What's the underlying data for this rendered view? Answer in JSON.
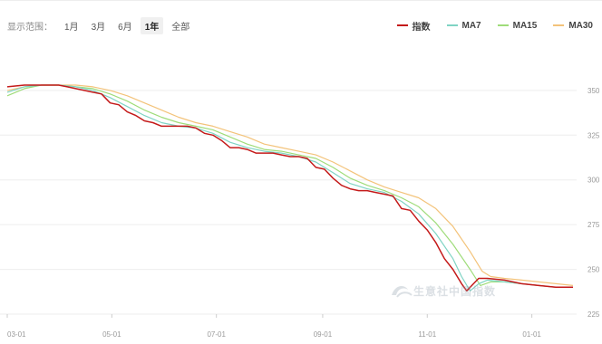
{
  "toolbar": {
    "range_label": "显示范围：",
    "buttons": [
      "1月",
      "3月",
      "6月",
      "1年",
      "全部"
    ],
    "active": "1年"
  },
  "legend": [
    {
      "label": "指数",
      "color": "#c41a1a"
    },
    {
      "label": "MA7",
      "color": "#7fd4c4"
    },
    {
      "label": "MA15",
      "color": "#9fdc7a"
    },
    {
      "label": "MA30",
      "color": "#f3c37a"
    }
  ],
  "watermark": {
    "text": "生意社中国指数",
    "logo_icon": "swirl-logo-icon"
  },
  "chart_data": {
    "type": "line",
    "title": "",
    "xlabel": "",
    "ylabel": "",
    "grid": "horizontal",
    "y_axis_position": "right",
    "ylim": [
      225,
      355
    ],
    "y_ticks": [
      225,
      250,
      275,
      300,
      325,
      350
    ],
    "x_ticks": [
      {
        "label": "03-01",
        "x": 0
      },
      {
        "label": "05-01",
        "x": 61
      },
      {
        "label": "07-01",
        "x": 122
      },
      {
        "label": "09-01",
        "x": 184
      },
      {
        "label": "11-01",
        "x": 245
      },
      {
        "label": "01-01",
        "x": 306
      }
    ],
    "x_range": [
      0,
      330
    ],
    "series": [
      {
        "name": "指数",
        "color": "#c41a1a",
        "points": [
          [
            0,
            352
          ],
          [
            10,
            353
          ],
          [
            20,
            353
          ],
          [
            30,
            353
          ],
          [
            35,
            352
          ],
          [
            40,
            351
          ],
          [
            45,
            350
          ],
          [
            50,
            349
          ],
          [
            55,
            348
          ],
          [
            60,
            343
          ],
          [
            65,
            342
          ],
          [
            70,
            338
          ],
          [
            75,
            336
          ],
          [
            80,
            333
          ],
          [
            85,
            332
          ],
          [
            90,
            330
          ],
          [
            95,
            330
          ],
          [
            100,
            330
          ],
          [
            105,
            330
          ],
          [
            110,
            329
          ],
          [
            115,
            326
          ],
          [
            120,
            325
          ],
          [
            125,
            322
          ],
          [
            130,
            318
          ],
          [
            135,
            318
          ],
          [
            140,
            317
          ],
          [
            145,
            315
          ],
          [
            150,
            315
          ],
          [
            155,
            315
          ],
          [
            160,
            314
          ],
          [
            165,
            313
          ],
          [
            170,
            313
          ],
          [
            175,
            312
          ],
          [
            180,
            307
          ],
          [
            185,
            306
          ],
          [
            190,
            301
          ],
          [
            195,
            297
          ],
          [
            200,
            295
          ],
          [
            205,
            294
          ],
          [
            210,
            294
          ],
          [
            215,
            293
          ],
          [
            220,
            292
          ],
          [
            225,
            291
          ],
          [
            230,
            284
          ],
          [
            235,
            283
          ],
          [
            240,
            277
          ],
          [
            245,
            272
          ],
          [
            250,
            265
          ],
          [
            255,
            256
          ],
          [
            260,
            250
          ],
          [
            265,
            242
          ],
          [
            268,
            238
          ],
          [
            272,
            242
          ],
          [
            275,
            245
          ],
          [
            280,
            245
          ],
          [
            290,
            244
          ],
          [
            300,
            242
          ],
          [
            310,
            241
          ],
          [
            320,
            240
          ],
          [
            330,
            240
          ]
        ]
      },
      {
        "name": "MA7",
        "color": "#7fd4c4",
        "points": [
          [
            0,
            349
          ],
          [
            10,
            352
          ],
          [
            20,
            353
          ],
          [
            30,
            353
          ],
          [
            40,
            352
          ],
          [
            50,
            350
          ],
          [
            60,
            346
          ],
          [
            70,
            341
          ],
          [
            80,
            336
          ],
          [
            90,
            332
          ],
          [
            100,
            330
          ],
          [
            110,
            329
          ],
          [
            120,
            326
          ],
          [
            130,
            321
          ],
          [
            140,
            318
          ],
          [
            150,
            316
          ],
          [
            160,
            315
          ],
          [
            170,
            313
          ],
          [
            180,
            310
          ],
          [
            190,
            304
          ],
          [
            200,
            298
          ],
          [
            210,
            295
          ],
          [
            220,
            293
          ],
          [
            230,
            288
          ],
          [
            240,
            281
          ],
          [
            250,
            270
          ],
          [
            260,
            256
          ],
          [
            265,
            246
          ],
          [
            270,
            238
          ],
          [
            275,
            242
          ],
          [
            280,
            244
          ],
          [
            290,
            243
          ],
          [
            300,
            242
          ],
          [
            310,
            241
          ],
          [
            320,
            240
          ],
          [
            330,
            240
          ]
        ]
      },
      {
        "name": "MA15",
        "color": "#9fdc7a",
        "points": [
          [
            0,
            347
          ],
          [
            10,
            351
          ],
          [
            20,
            353
          ],
          [
            30,
            353
          ],
          [
            40,
            352
          ],
          [
            50,
            351
          ],
          [
            60,
            348
          ],
          [
            70,
            344
          ],
          [
            80,
            339
          ],
          [
            90,
            335
          ],
          [
            100,
            332
          ],
          [
            110,
            330
          ],
          [
            120,
            328
          ],
          [
            130,
            324
          ],
          [
            140,
            320
          ],
          [
            150,
            317
          ],
          [
            160,
            316
          ],
          [
            170,
            314
          ],
          [
            180,
            312
          ],
          [
            190,
            307
          ],
          [
            200,
            301
          ],
          [
            210,
            297
          ],
          [
            220,
            294
          ],
          [
            230,
            290
          ],
          [
            240,
            285
          ],
          [
            250,
            276
          ],
          [
            260,
            264
          ],
          [
            270,
            250
          ],
          [
            276,
            241
          ],
          [
            282,
            243
          ],
          [
            290,
            243
          ],
          [
            300,
            242
          ],
          [
            310,
            241
          ],
          [
            320,
            240
          ],
          [
            330,
            240
          ]
        ]
      },
      {
        "name": "MA30",
        "color": "#f3c37a",
        "points": [
          [
            0,
            350
          ],
          [
            10,
            352
          ],
          [
            20,
            353
          ],
          [
            30,
            353
          ],
          [
            40,
            353
          ],
          [
            50,
            352
          ],
          [
            60,
            350
          ],
          [
            70,
            347
          ],
          [
            80,
            343
          ],
          [
            90,
            339
          ],
          [
            100,
            335
          ],
          [
            110,
            332
          ],
          [
            120,
            330
          ],
          [
            130,
            327
          ],
          [
            140,
            324
          ],
          [
            150,
            320
          ],
          [
            160,
            318
          ],
          [
            170,
            316
          ],
          [
            180,
            314
          ],
          [
            190,
            310
          ],
          [
            200,
            305
          ],
          [
            210,
            300
          ],
          [
            220,
            296
          ],
          [
            230,
            293
          ],
          [
            240,
            290
          ],
          [
            250,
            284
          ],
          [
            260,
            274
          ],
          [
            270,
            260
          ],
          [
            277,
            249
          ],
          [
            282,
            246
          ],
          [
            290,
            245
          ],
          [
            300,
            244
          ],
          [
            310,
            243
          ],
          [
            320,
            242
          ],
          [
            330,
            241
          ]
        ]
      }
    ]
  }
}
